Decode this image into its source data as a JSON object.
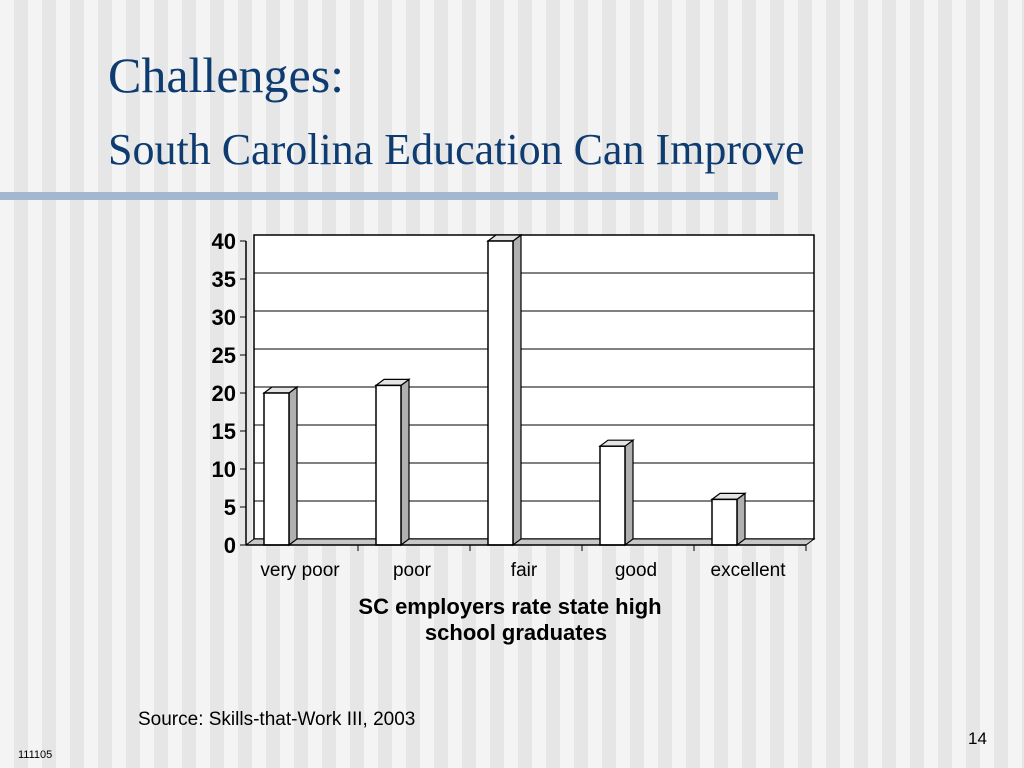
{
  "slide": {
    "title": "Challenges:",
    "subtitle": "South Carolina Education Can Improve",
    "source": "Source: Skills-that-Work III, 2003",
    "page_number": "14",
    "footer_code": "111105"
  },
  "chart_data": {
    "type": "bar",
    "categories": [
      "very poor",
      "poor",
      "fair",
      "good",
      "excellent"
    ],
    "values": [
      20,
      21,
      40,
      13,
      6
    ],
    "xlabel": [
      "SC employers rate state high",
      "school graduates"
    ],
    "ylabel": "",
    "ylim": [
      0,
      40
    ],
    "yticks": [
      "0",
      "5",
      "10",
      "15",
      "20",
      "25",
      "30",
      "35",
      "40"
    ],
    "grid": true,
    "legend": "none",
    "style": "3d"
  }
}
